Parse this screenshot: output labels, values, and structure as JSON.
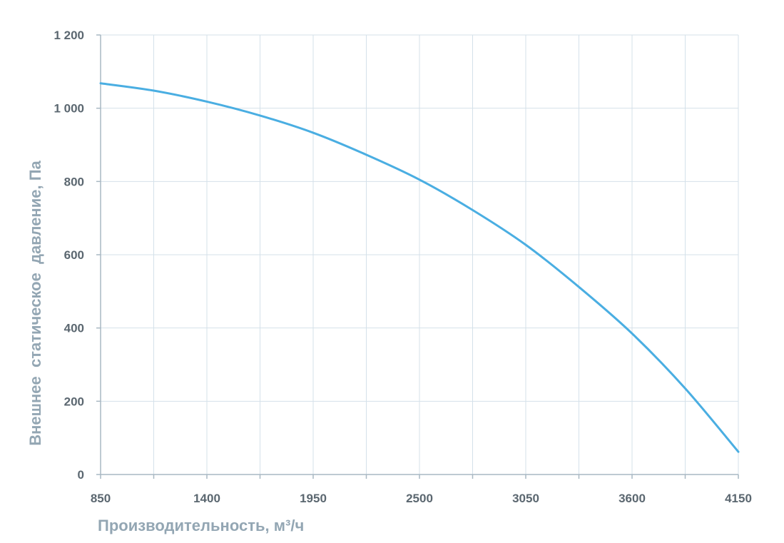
{
  "chart_data": {
    "type": "line",
    "title": "",
    "xlabel": "Производительность, м³/ч",
    "ylabel": "Внешнее  статическое  давление, Па",
    "x_ticks": [
      850,
      1400,
      1950,
      2500,
      3050,
      3600,
      4150
    ],
    "x_tick_labels": [
      "850",
      "1400",
      "1950",
      "2500",
      "3050",
      "3600",
      "4150"
    ],
    "x_gridlines": [
      850,
      1125,
      1400,
      1675,
      1950,
      2225,
      2500,
      2775,
      3050,
      3325,
      3600,
      3875,
      4150
    ],
    "y_ticks": [
      0,
      200,
      400,
      600,
      800,
      1000,
      1200
    ],
    "y_tick_labels": [
      "0",
      "200",
      "400",
      "600",
      "800",
      "1 000",
      "1 200"
    ],
    "xlim": [
      850,
      4150
    ],
    "ylim": [
      0,
      1200
    ],
    "grid": true,
    "legend": "none",
    "colors": {
      "line": "#4aaee2",
      "grid": "#d4e1ea",
      "axis": "#a9b8c3",
      "tick_text": "#5b6770",
      "axis_title": "#93a6b3"
    },
    "series": [
      {
        "x": [
          850,
          1125,
          1400,
          1675,
          1950,
          2225,
          2500,
          2775,
          3050,
          3325,
          3600,
          3875,
          4150
        ],
        "y": [
          1068,
          1048,
          1018,
          980,
          933,
          873,
          805,
          722,
          627,
          512,
          385,
          235,
          62
        ]
      }
    ]
  }
}
